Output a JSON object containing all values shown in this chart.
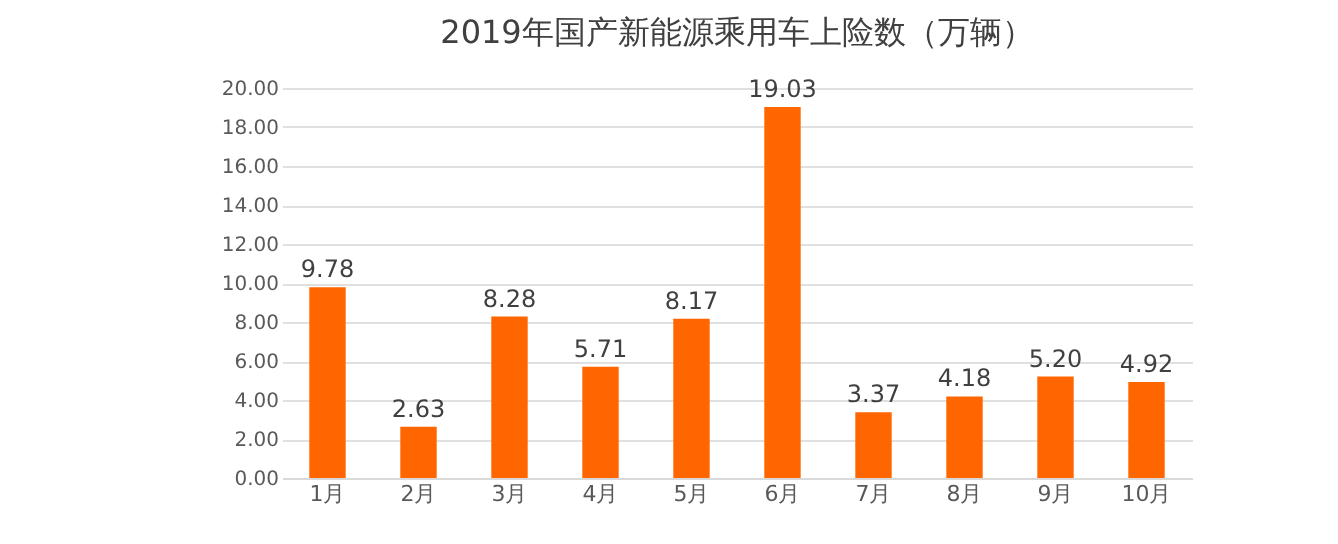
{
  "chart_data": {
    "type": "bar",
    "title": "2019年国产新能源乘用车上险数（万辆）",
    "categories": [
      "1月",
      "2月",
      "3月",
      "4月",
      "5月",
      "6月",
      "7月",
      "8月",
      "9月",
      "10月"
    ],
    "values": [
      9.78,
      2.63,
      8.28,
      5.71,
      8.17,
      19.03,
      3.37,
      4.18,
      5.2,
      4.92
    ],
    "value_labels": [
      "9.78",
      "2.63",
      "8.28",
      "5.71",
      "8.17",
      "19.03",
      "3.37",
      "4.18",
      "5.20",
      "4.92"
    ],
    "color": "#ff6600",
    "ylim": [
      0,
      20
    ],
    "yticks": [
      {
        "value": 0,
        "label": "0.00"
      },
      {
        "value": 2,
        "label": "2.00"
      },
      {
        "value": 4,
        "label": "4.00"
      },
      {
        "value": 6,
        "label": "6.00"
      },
      {
        "value": 8,
        "label": "8.00"
      },
      {
        "value": 10,
        "label": "10.00"
      },
      {
        "value": 12,
        "label": "12.00"
      },
      {
        "value": 14,
        "label": "14.00"
      },
      {
        "value": 16,
        "label": "16.00"
      },
      {
        "value": 18,
        "label": "18.00"
      },
      {
        "value": 20,
        "label": "20.00"
      }
    ],
    "grid": "y"
  }
}
